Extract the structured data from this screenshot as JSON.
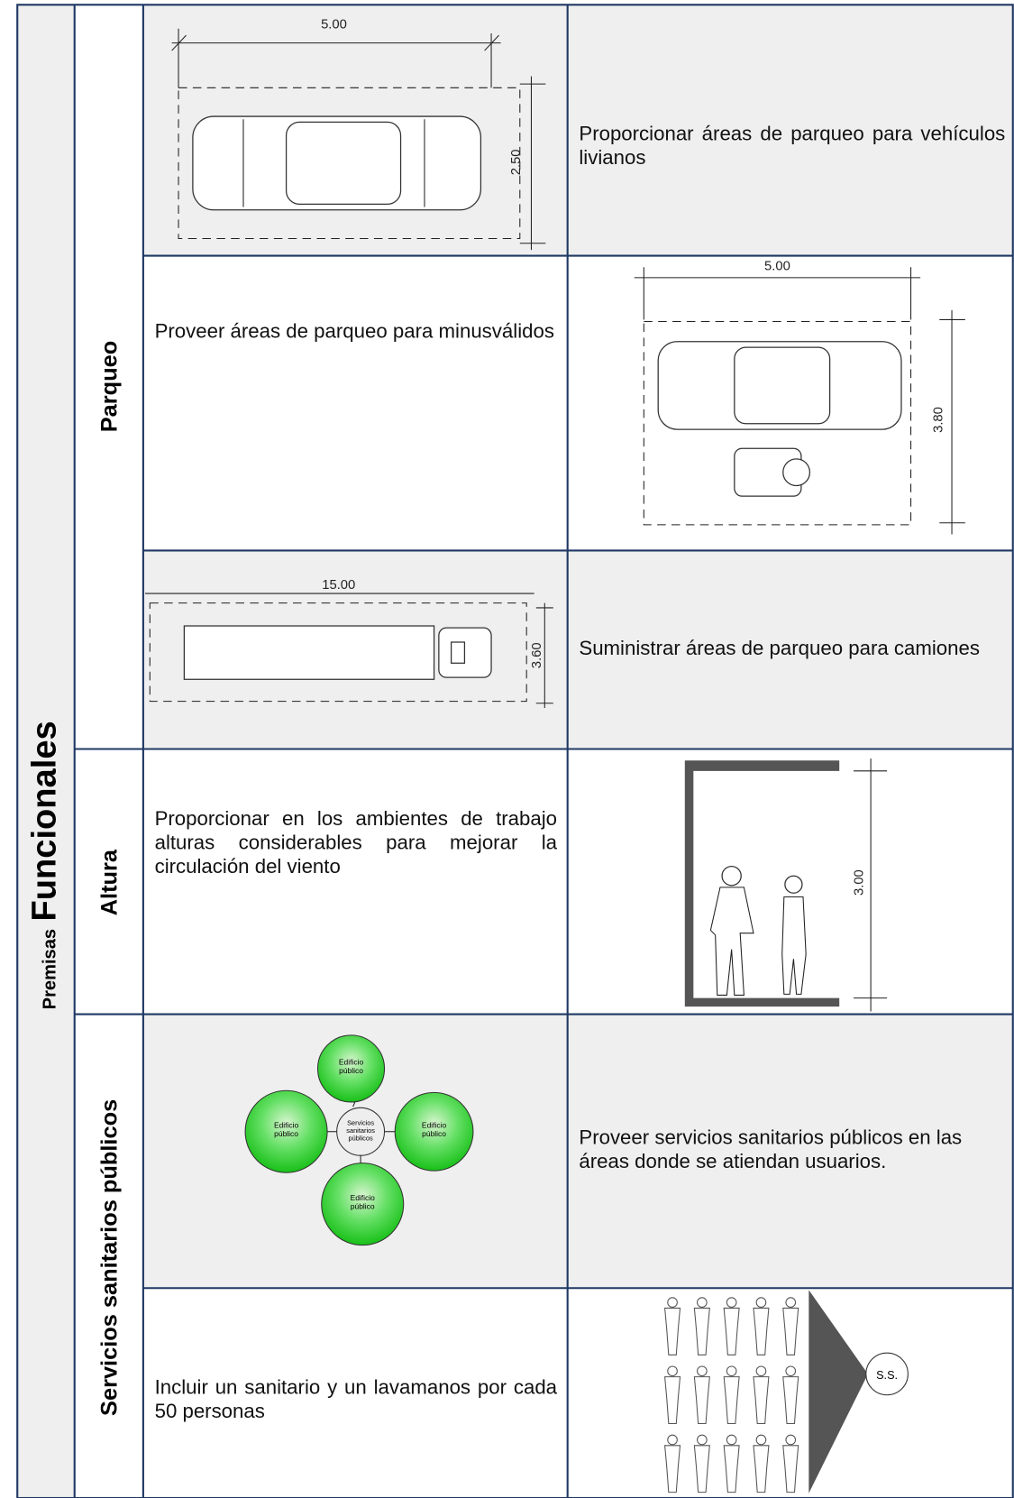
{
  "title": {
    "small": "Premisas",
    "large": "Funcionales"
  },
  "groups": [
    {
      "label": "Parqueo"
    },
    {
      "label": "Altura"
    },
    {
      "label": "Servicios sanitarios públicos"
    }
  ],
  "rows": [
    {
      "text": "Proporcionar áreas de parqueo para vehículos livianos",
      "dimensions": [
        "5.00",
        "2.50"
      ]
    },
    {
      "text": "Proveer áreas de parqueo para minusválidos",
      "dimensions": [
        "5.00",
        "3.80"
      ]
    },
    {
      "text": "Suministrar áreas de parqueo para camiones",
      "dimensions": [
        "15.00",
        "3.60"
      ]
    },
    {
      "text": "Proporcionar en los ambientes de trabajo alturas considerables para mejorar la circulación del viento",
      "dimensions": [
        "3.00"
      ]
    },
    {
      "text": "Proveer servicios sanitarios públicos en las áreas donde se atiendan usuarios.",
      "diagram": {
        "center": [
          "Servicios",
          "sanitarios",
          "públicos"
        ],
        "nodes": [
          [
            "Edificio",
            "público"
          ],
          [
            "Edificio",
            "público"
          ],
          [
            "Edificio",
            "público"
          ],
          [
            "Edificio",
            "público"
          ]
        ]
      }
    },
    {
      "text": "Incluir un sanitario y un lavamanos por cada 50 personas",
      "symbol": "S.S."
    }
  ]
}
